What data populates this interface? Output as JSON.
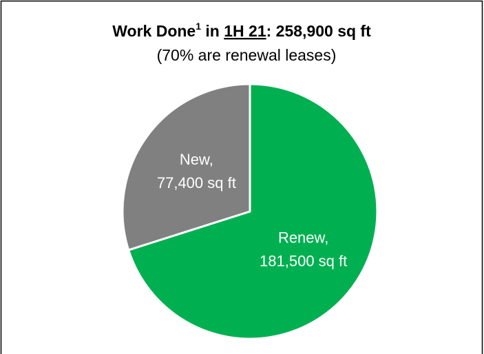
{
  "chart_data": {
    "type": "pie",
    "title_parts": [
      "Work Done",
      "1",
      " in ",
      "1H 21",
      ": 258,900 sq ft"
    ],
    "subtitle": "(70% are renewal leases)",
    "values": [
      181500,
      77400
    ],
    "value_labels": [
      [
        "Renew,",
        "181,500 sq ft"
      ],
      [
        "New,",
        "77,400 sq ft"
      ]
    ],
    "colors": [
      "#00b050",
      "#808080"
    ]
  }
}
